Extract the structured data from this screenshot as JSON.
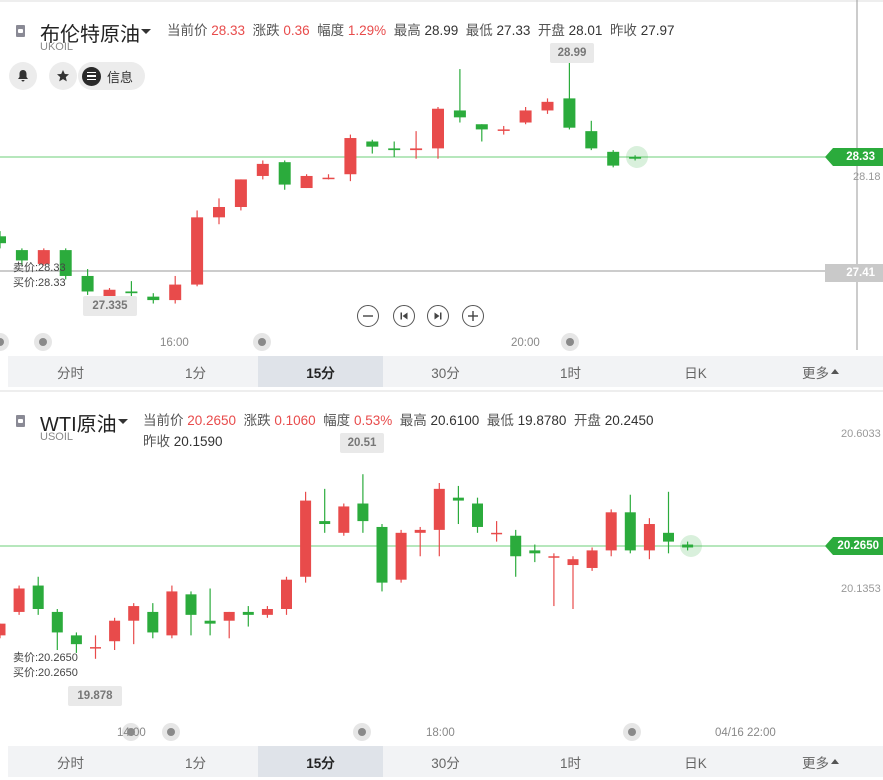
{
  "brent": {
    "name": "布伦特原油",
    "code": "UKOIL",
    "quote": {
      "current_label": "当前价",
      "current": "28.33",
      "change_label": "涨跌",
      "change": "0.36",
      "range_label": "幅度",
      "range": "1.29%",
      "high_label": "最高",
      "high": "28.99",
      "low_label": "最低",
      "low": "27.33",
      "open_label": "开盘",
      "open": "28.01",
      "prev_label": "昨收",
      "prev": "27.97"
    },
    "actions": {
      "info_label": "信息"
    },
    "sell": "卖价:28.33",
    "buy": "买价:28.33",
    "price_tag": "28.33",
    "cursor_tag": "27.41",
    "axis_right": "28.18",
    "high_bubble": "28.99",
    "low_bubble": "27.335",
    "times": [
      "16:00",
      "20:00"
    ],
    "colors": {
      "up": "#e84b4b",
      "down": "#2bab3c",
      "accent": "#2bab3c"
    }
  },
  "wti": {
    "name": "WTI原油",
    "code": "USOIL",
    "quote": {
      "current_label": "当前价",
      "current": "20.2650",
      "change_label": "涨跌",
      "change": "0.1060",
      "range_label": "幅度",
      "range": "0.53%",
      "high_label": "最高",
      "high": "20.6100",
      "low_label": "最低",
      "low": "19.8780",
      "open_label": "开盘",
      "open": "20.2450",
      "prev_label": "昨收",
      "prev": "20.1590"
    },
    "sell": "卖价:20.2650",
    "buy": "买价:20.2650",
    "price_tag": "20.2650",
    "axis_top": "20.6033",
    "axis_mid": "20.1353",
    "high_bubble": "20.51",
    "low_bubble": "19.878",
    "times": [
      "14:00",
      "18:00",
      "04/16 22:00"
    ]
  },
  "tabs": [
    "分时",
    "1分",
    "15分",
    "30分",
    "1时",
    "日K",
    "更多"
  ],
  "active_tab": "15分",
  "chart_data": [
    {
      "type": "candlestick",
      "title": "布伦特原油",
      "candles": [
        {
          "o": 27.87,
          "c": 27.83,
          "h": 27.9,
          "l": 27.8
        },
        {
          "o": 27.79,
          "c": 27.73,
          "h": 27.8,
          "l": 27.7
        },
        {
          "o": 27.71,
          "c": 27.79,
          "h": 27.8,
          "l": 27.7
        },
        {
          "o": 27.79,
          "c": 27.64,
          "h": 27.8,
          "l": 27.62
        },
        {
          "o": 27.64,
          "c": 27.55,
          "h": 27.68,
          "l": 27.53
        },
        {
          "o": 27.5,
          "c": 27.56,
          "h": 27.57,
          "l": 27.41
        },
        {
          "o": 27.55,
          "c": 27.54,
          "h": 27.61,
          "l": 27.43
        },
        {
          "o": 27.52,
          "c": 27.5,
          "h": 27.54,
          "l": 27.48
        },
        {
          "o": 27.5,
          "c": 27.59,
          "h": 27.64,
          "l": 27.48
        },
        {
          "o": 27.59,
          "c": 27.98,
          "h": 28.02,
          "l": 27.58
        },
        {
          "o": 27.98,
          "c": 28.04,
          "h": 28.09,
          "l": 27.94
        },
        {
          "o": 28.04,
          "c": 28.2,
          "h": 28.2,
          "l": 28.02
        },
        {
          "o": 28.22,
          "c": 28.29,
          "h": 28.31,
          "l": 28.2
        },
        {
          "o": 28.3,
          "c": 28.17,
          "h": 28.31,
          "l": 28.14
        },
        {
          "o": 28.15,
          "c": 28.22,
          "h": 28.23,
          "l": 28.15
        },
        {
          "o": 28.21,
          "c": 28.21,
          "h": 28.23,
          "l": 28.2
        },
        {
          "o": 28.23,
          "c": 28.44,
          "h": 28.46,
          "l": 28.19
        },
        {
          "o": 28.42,
          "c": 28.39,
          "h": 28.43,
          "l": 28.35
        },
        {
          "o": 28.38,
          "c": 28.37,
          "h": 28.42,
          "l": 28.33
        },
        {
          "o": 28.37,
          "c": 28.38,
          "h": 28.48,
          "l": 28.32
        },
        {
          "o": 28.38,
          "c": 28.61,
          "h": 28.62,
          "l": 28.32
        },
        {
          "o": 28.6,
          "c": 28.56,
          "h": 28.84,
          "l": 28.53
        },
        {
          "o": 28.52,
          "c": 28.49,
          "h": 28.52,
          "l": 28.42
        },
        {
          "o": 28.49,
          "c": 28.49,
          "h": 28.51,
          "l": 28.46
        },
        {
          "o": 28.53,
          "c": 28.6,
          "h": 28.62,
          "l": 28.52
        },
        {
          "o": 28.6,
          "c": 28.65,
          "h": 28.67,
          "l": 28.58
        },
        {
          "o": 28.67,
          "c": 28.5,
          "h": 28.99,
          "l": 28.49
        },
        {
          "o": 28.48,
          "c": 28.38,
          "h": 28.54,
          "l": 28.37
        },
        {
          "o": 28.36,
          "c": 28.28,
          "h": 28.37,
          "l": 28.27
        },
        {
          "o": 28.33,
          "c": 28.32,
          "h": 28.34,
          "l": 28.31
        }
      ]
    },
    {
      "type": "candlestick",
      "title": "WTI原油",
      "candles": [
        {
          "o": 19.96,
          "c": 20.0,
          "h": 20.0,
          "l": 19.95
        },
        {
          "o": 20.04,
          "c": 20.12,
          "h": 20.13,
          "l": 20.03
        },
        {
          "o": 20.13,
          "c": 20.05,
          "h": 20.16,
          "l": 20.03
        },
        {
          "o": 20.04,
          "c": 19.97,
          "h": 20.05,
          "l": 19.91
        },
        {
          "o": 19.96,
          "c": 19.93,
          "h": 19.97,
          "l": 19.9
        },
        {
          "o": 19.92,
          "c": 19.92,
          "h": 19.96,
          "l": 19.88
        },
        {
          "o": 19.94,
          "c": 20.01,
          "h": 20.02,
          "l": 19.91
        },
        {
          "o": 20.01,
          "c": 20.06,
          "h": 20.07,
          "l": 19.93
        },
        {
          "o": 20.04,
          "c": 19.97,
          "h": 20.07,
          "l": 19.95
        },
        {
          "o": 19.96,
          "c": 20.11,
          "h": 20.13,
          "l": 19.95
        },
        {
          "o": 20.1,
          "c": 20.03,
          "h": 20.11,
          "l": 19.96
        },
        {
          "o": 20.01,
          "c": 20.0,
          "h": 20.12,
          "l": 19.96
        },
        {
          "o": 20.01,
          "c": 20.04,
          "h": 20.04,
          "l": 19.95
        },
        {
          "o": 20.04,
          "c": 20.03,
          "h": 20.06,
          "l": 19.99
        },
        {
          "o": 20.03,
          "c": 20.05,
          "h": 20.06,
          "l": 20.02
        },
        {
          "o": 20.05,
          "c": 20.15,
          "h": 20.16,
          "l": 20.03
        },
        {
          "o": 20.16,
          "c": 20.42,
          "h": 20.45,
          "l": 20.14
        },
        {
          "o": 20.35,
          "c": 20.34,
          "h": 20.46,
          "l": 20.31
        },
        {
          "o": 20.31,
          "c": 20.4,
          "h": 20.41,
          "l": 20.3
        },
        {
          "o": 20.41,
          "c": 20.35,
          "h": 20.51,
          "l": 20.31
        },
        {
          "o": 20.33,
          "c": 20.14,
          "h": 20.34,
          "l": 20.11
        },
        {
          "o": 20.15,
          "c": 20.31,
          "h": 20.32,
          "l": 20.14
        },
        {
          "o": 20.31,
          "c": 20.32,
          "h": 20.33,
          "l": 20.23
        },
        {
          "o": 20.32,
          "c": 20.46,
          "h": 20.48,
          "l": 20.23
        },
        {
          "o": 20.43,
          "c": 20.42,
          "h": 20.47,
          "l": 20.34
        },
        {
          "o": 20.41,
          "c": 20.33,
          "h": 20.43,
          "l": 20.31
        },
        {
          "o": 20.31,
          "c": 20.31,
          "h": 20.35,
          "l": 20.28
        },
        {
          "o": 20.3,
          "c": 20.23,
          "h": 20.32,
          "l": 20.16
        },
        {
          "o": 20.25,
          "c": 20.24,
          "h": 20.27,
          "l": 20.21
        },
        {
          "o": 20.23,
          "c": 20.23,
          "h": 20.24,
          "l": 20.06
        },
        {
          "o": 20.2,
          "c": 20.22,
          "h": 20.23,
          "l": 20.05
        },
        {
          "o": 20.19,
          "c": 20.25,
          "h": 20.26,
          "l": 20.18
        },
        {
          "o": 20.25,
          "c": 20.38,
          "h": 20.39,
          "l": 20.23
        },
        {
          "o": 20.38,
          "c": 20.25,
          "h": 20.44,
          "l": 20.24
        },
        {
          "o": 20.25,
          "c": 20.34,
          "h": 20.36,
          "l": 20.22
        },
        {
          "o": 20.31,
          "c": 20.28,
          "h": 20.45,
          "l": 20.24
        },
        {
          "o": 20.27,
          "c": 20.26,
          "h": 20.28,
          "l": 20.25
        }
      ]
    }
  ]
}
